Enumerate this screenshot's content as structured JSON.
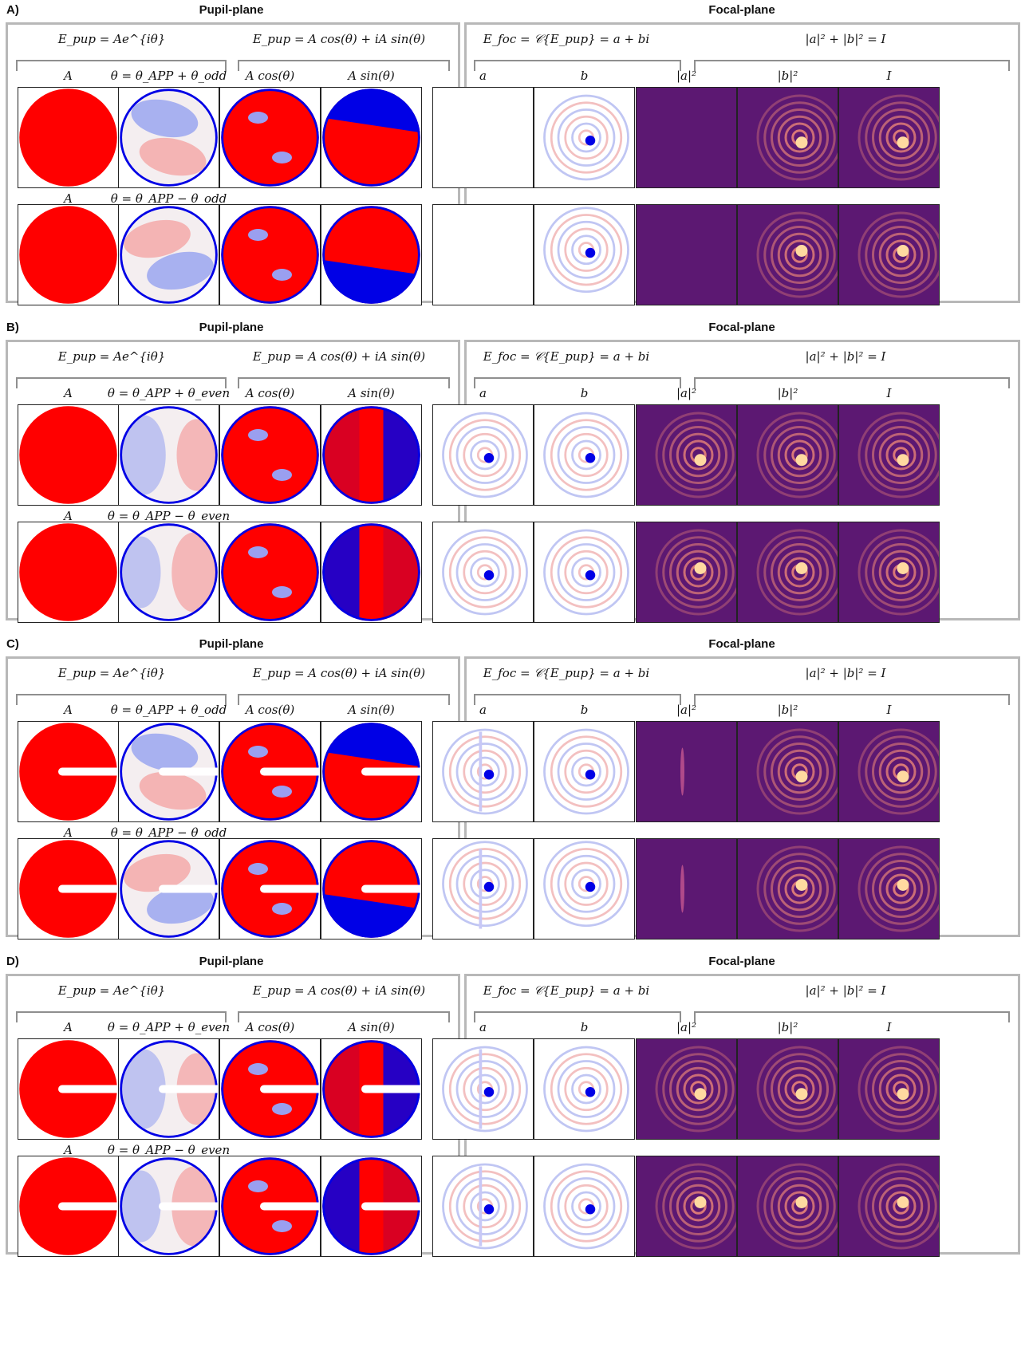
{
  "pupil_title": "Pupil-plane",
  "focal_title": "Focal-plane",
  "eq_pupil_exp": "E_pup = Ae^{iθ}",
  "eq_pupil_trig": "E_pup = A cos(θ) + iA sin(θ)",
  "eq_focal": "E_foc = 𝒞{E_pup} = a + bi",
  "eq_intensity": "|a|² + |b|² = I",
  "col_amp": "A",
  "col_cos": "A cos(θ)",
  "col_sin": "A sin(θ)",
  "col_a": "a",
  "col_b": "b",
  "col_a2": "|a|²",
  "col_b2": "|b|²",
  "col_I": "I",
  "panels": [
    {
      "letter": "A)",
      "theta_top": "θ = θ_APP + θ_odd",
      "theta_bottom": "θ = θ_APP − θ_odd",
      "row_label_bottom": "A",
      "pupil_shape": "circle",
      "mode": "odd"
    },
    {
      "letter": "B)",
      "theta_top": "θ = θ_APP + θ_even",
      "theta_bottom": "θ = θ_APP − θ_even",
      "row_label_bottom": "A",
      "pupil_shape": "circle",
      "mode": "even"
    },
    {
      "letter": "C)",
      "theta_top": "θ = θ_APP + θ_odd",
      "theta_bottom": "θ = θ_APP − θ_odd",
      "row_label_bottom": "A",
      "pupil_shape": "circle-with-slot",
      "mode": "odd"
    },
    {
      "letter": "D)",
      "theta_top": "θ = θ_APP + θ_even",
      "theta_bottom": "θ = θ_APP − θ_even",
      "row_label_bottom": "A",
      "pupil_shape": "circle-with-slot",
      "mode": "even"
    }
  ],
  "colors": {
    "red": "#ff0000",
    "blue": "#0000e6",
    "focal_background": "#5c1872",
    "focal_bright": "#ffd9a0",
    "frame": "#b8b8b8"
  }
}
